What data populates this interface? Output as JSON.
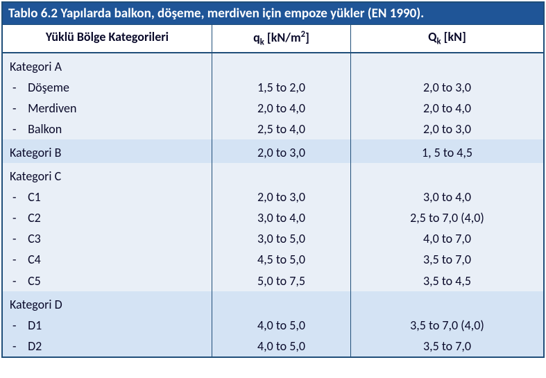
{
  "title": "Tablo 6.2 Yapılarda balkon, döşeme, merdiven için empoze yükler (EN 1990).",
  "headers": {
    "col1": "Yüklü Bölge Kategorileri",
    "col2_prefix": "q",
    "col2_sub": "k",
    "col2_unit_open": " [kN/m",
    "col2_unit_sup": "2",
    "col2_unit_close": "]",
    "col3_prefix": "Q",
    "col3_sub": "k",
    "col3_unit": " [kN]"
  },
  "rows": [
    {
      "label": "Kategori A",
      "qk": "",
      "Qk": "",
      "type": "cat",
      "odd": false,
      "gap": true
    },
    {
      "label": "Döşeme",
      "qk": "1,5 to 2,0",
      "Qk": "2,0 to 3,0",
      "type": "sub",
      "odd": false
    },
    {
      "label": "Merdiven",
      "qk": "2,0 to 4,0",
      "Qk": "2,0 to 4,0",
      "type": "sub",
      "odd": false
    },
    {
      "label": "Balkon",
      "qk": "2,5 to 4,0",
      "Qk": "2,0 to 3,0",
      "type": "sub",
      "odd": false
    },
    {
      "label": "Kategori B",
      "qk": "2,0 to 3,0",
      "Qk": "1, 5 to 4,5",
      "type": "cat",
      "odd": true,
      "gap": true
    },
    {
      "label": "Kategori C",
      "qk": "",
      "Qk": "",
      "type": "cat",
      "odd": false,
      "gap": true
    },
    {
      "label": "C1",
      "qk": "2,0 to 3,0",
      "Qk": "3,0 to 4,0",
      "type": "sub",
      "odd": false
    },
    {
      "label": "C2",
      "qk": "3,0 to 4,0",
      "Qk": "2,5 to 7,0 (4,0)",
      "type": "sub",
      "odd": false
    },
    {
      "label": "C3",
      "qk": "3,0 to 5,0",
      "Qk": "4,0 to 7,0",
      "type": "sub",
      "odd": false
    },
    {
      "label": "C4",
      "qk": "4,5 to 5,0",
      "Qk": "3,5 to 7,0",
      "type": "sub",
      "odd": false
    },
    {
      "label": "C5",
      "qk": "5,0 to 7,5",
      "Qk": "3,5 to 4,5",
      "type": "sub",
      "odd": false
    },
    {
      "label": "Kategori D",
      "qk": "",
      "Qk": "",
      "type": "cat",
      "odd": true,
      "gap": true
    },
    {
      "label": "D1",
      "qk": "4,0 to 5,0",
      "Qk": "3,5 to 7,0 (4,0)",
      "type": "sub",
      "odd": true
    },
    {
      "label": "D2",
      "qk": "4,0 to 5,0",
      "Qk": "3,5 to 7,0",
      "type": "sub",
      "odd": true
    }
  ],
  "dash": "-"
}
